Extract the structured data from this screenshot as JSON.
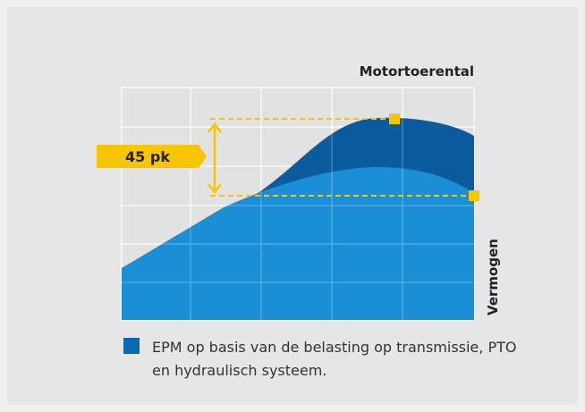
{
  "x_axis_label": "Motortoerental",
  "y_axis_label": "Vermogen",
  "annotation": "45 pk",
  "legend": {
    "label": "EPM op basis van de belasting op transmissie, PTO en hydraulisch systeem."
  }
}
